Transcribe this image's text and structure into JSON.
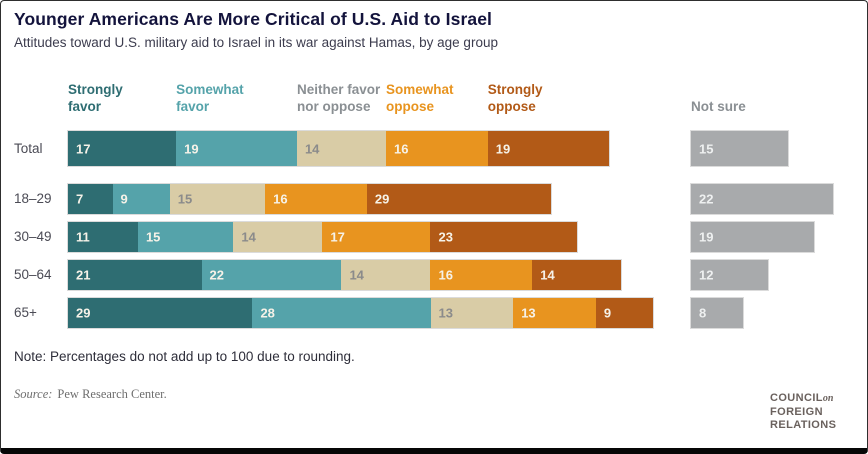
{
  "header": {
    "title": "Younger Americans Are More Critical of U.S. Aid to Israel",
    "subtitle": "Attitudes toward U.S. military aid to Israel in its war against Hamas, by age group"
  },
  "chart_data": {
    "type": "bar",
    "orientation": "horizontal",
    "stacked": true,
    "unit": "percent",
    "legend_position": "top",
    "categories": [
      "Total",
      "18–29",
      "30–49",
      "50–64",
      "65+"
    ],
    "series": [
      {
        "name": "Strongly favor",
        "color": "#2e6d72",
        "label_color": "#f6f2e8",
        "values": [
          17,
          7,
          11,
          21,
          29
        ]
      },
      {
        "name": "Somewhat favor",
        "color": "#55a3aa",
        "label_color": "#f6f2e8",
        "values": [
          19,
          9,
          15,
          22,
          28
        ]
      },
      {
        "name": "Neither favor nor oppose",
        "color": "#d9cca6",
        "label_color": "#8b8b8b",
        "values": [
          14,
          15,
          14,
          14,
          13
        ]
      },
      {
        "name": "Somewhat oppose",
        "color": "#e8941f",
        "label_color": "#f6f2e8",
        "values": [
          16,
          16,
          17,
          16,
          13
        ]
      },
      {
        "name": "Strongly oppose",
        "color": "#b25a17",
        "label_color": "#f6f2e8",
        "values": [
          19,
          29,
          23,
          14,
          9
        ]
      },
      {
        "name": "Not sure",
        "color": "#a8aaac",
        "label_color": "#eef0f0",
        "values": [
          15,
          22,
          19,
          12,
          8
        ],
        "detached": true
      }
    ]
  },
  "legend": {
    "items": [
      {
        "lines": [
          "Strongly",
          "favor"
        ],
        "text_color": "#2e6d72"
      },
      {
        "lines": [
          "Somewhat",
          "favor"
        ],
        "text_color": "#55a3aa"
      },
      {
        "lines": [
          "Neither favor",
          "nor oppose"
        ],
        "text_color": "#8a8f93"
      },
      {
        "lines": [
          "Somewhat",
          "oppose"
        ],
        "text_color": "#e8941f"
      },
      {
        "lines": [
          "Strongly",
          "oppose"
        ],
        "text_color": "#b25a17"
      },
      {
        "lines": [
          "Not sure"
        ],
        "text_color": "#8a8f93"
      }
    ]
  },
  "footer": {
    "note": "Note: Percentages do not add up to 100 due to rounding.",
    "source_label": "Source:",
    "source_text": "Pew Research Center.",
    "logo": {
      "word1": "COUNCIL",
      "connector": "on",
      "word2": "FOREIGN",
      "word3": "RELATIONS"
    }
  }
}
